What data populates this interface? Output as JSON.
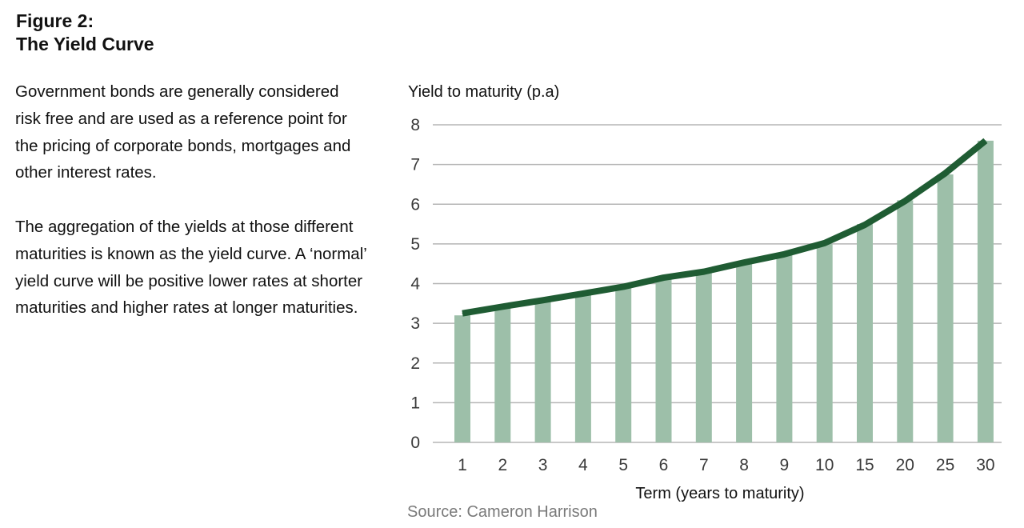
{
  "figure": {
    "title_line1": "Figure 2:",
    "title_line2": "The Yield Curve"
  },
  "text": {
    "paragraph1": "Government bonds are generally considered risk free and are used as a reference point for the pricing of corporate bonds, mortgages and other interest rates.",
    "paragraph2": "The aggregation of the yields at those different maturities is known as the yield curve. A ‘normal’ yield curve will be positive lower rates at shorter maturities and higher rates at longer maturities."
  },
  "source": "Source: Cameron Harrison",
  "colors": {
    "bar": "#9dbfa9",
    "line": "#1f5c33",
    "grid": "#b5b5b5",
    "tick_label": "#3a3a3a"
  },
  "chart_data": {
    "type": "bar",
    "title": "",
    "xlabel": "Term (years to maturity)",
    "ylabel": "Yield to maturity (p.a)",
    "categories": [
      "1",
      "2",
      "3",
      "4",
      "5",
      "6",
      "7",
      "8",
      "9",
      "10",
      "15",
      "20",
      "25",
      "30"
    ],
    "series": [
      {
        "type": "bar",
        "values": [
          3.2,
          3.4,
          3.55,
          3.75,
          3.9,
          4.15,
          4.3,
          4.55,
          4.75,
          5.0,
          5.5,
          6.1,
          6.75,
          7.6
        ]
      },
      {
        "type": "line",
        "values": [
          3.25,
          3.42,
          3.58,
          3.75,
          3.92,
          4.15,
          4.3,
          4.53,
          4.74,
          5.02,
          5.48,
          6.08,
          6.78,
          7.6
        ]
      }
    ],
    "ylim": [
      0,
      8
    ],
    "yticks": [
      0,
      1,
      2,
      3,
      4,
      5,
      6,
      7,
      8
    ],
    "grid": true,
    "legend": "none"
  }
}
